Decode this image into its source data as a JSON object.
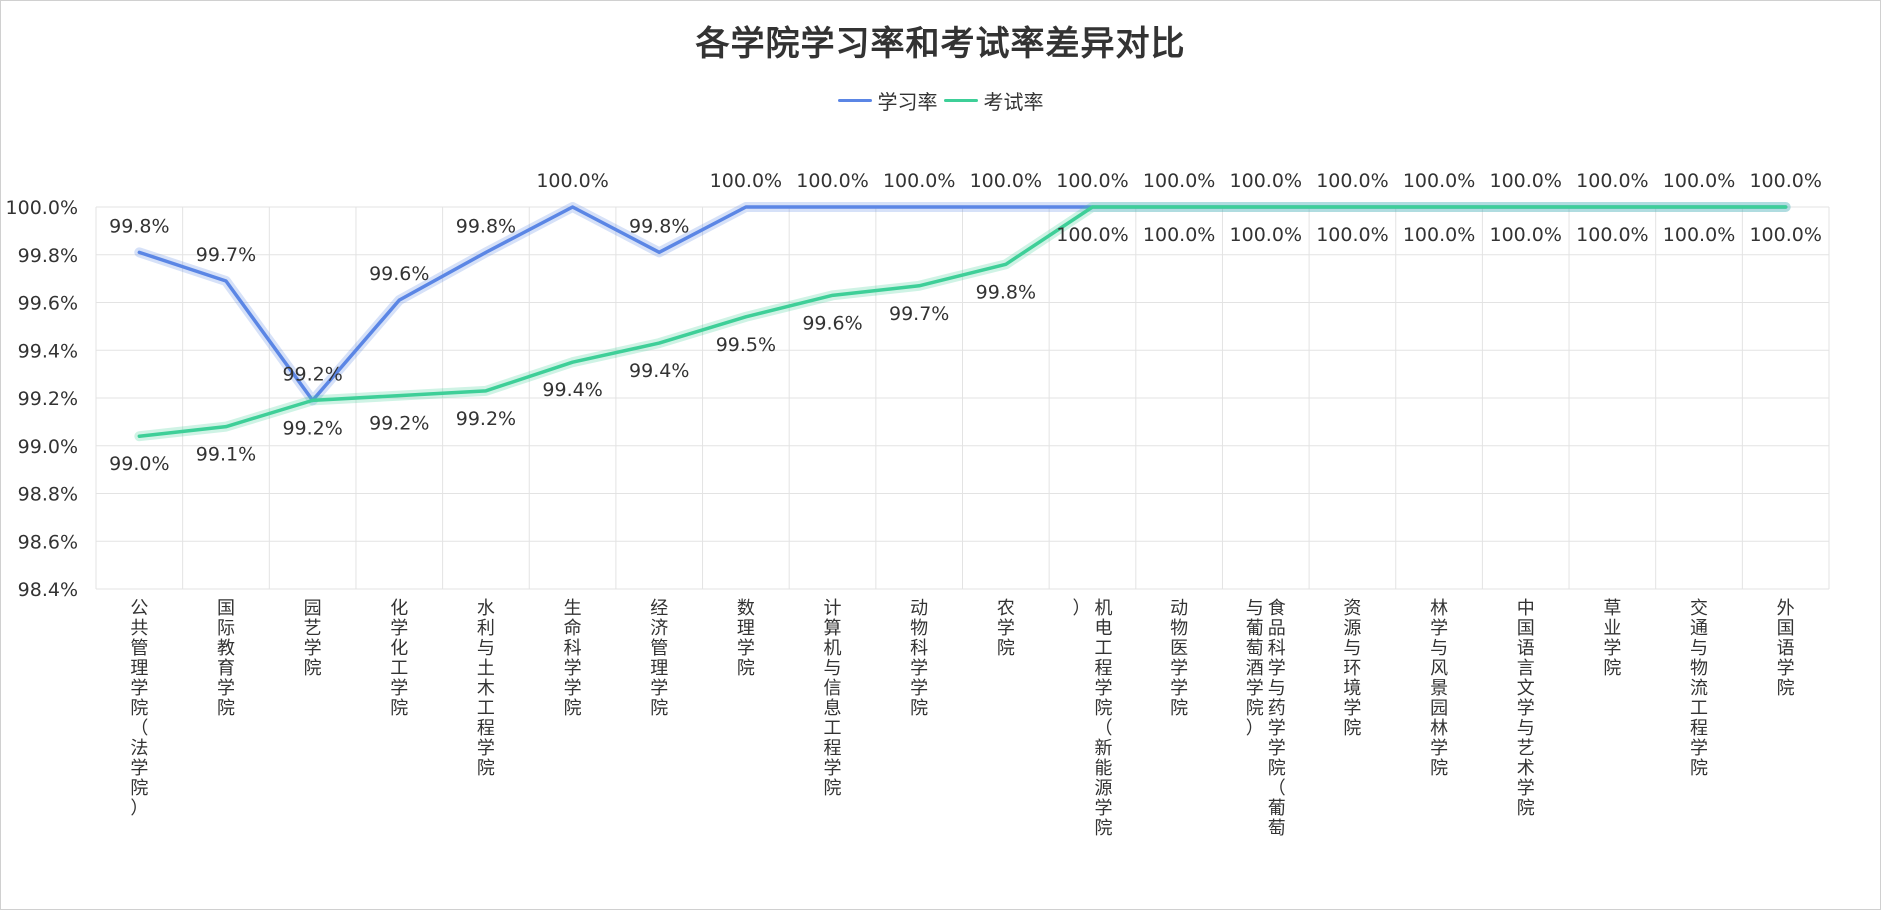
{
  "chart_data": {
    "type": "line",
    "title": "各学院学习率和考试率差异对比",
    "xlabel": "",
    "ylabel": "",
    "ylim": [
      98.4,
      100.0
    ],
    "yticks": [
      "100.0%",
      "99.8%",
      "99.6%",
      "99.4%",
      "99.2%",
      "99.0%",
      "98.8%",
      "98.6%",
      "98.4%"
    ],
    "grid": true,
    "legend_position": "top-center",
    "categories": [
      "公共管理学院（法学院）",
      "国际教育学院",
      "园艺学院",
      "化学化工学院",
      "水利与土木工程学院",
      "生命科学学院",
      "经济管理学院",
      "数理学院",
      "计算机与信息工程学院",
      "动物科学学院",
      "农学院",
      "机电工程学院（新能源学院）",
      "动物医学学院",
      "食品科学与药学学院（葡萄与葡萄酒学院）",
      "资源与环境学院",
      "林学与风景园林学院",
      "中国语言文学与艺术学院",
      "草业学院",
      "交通与物流工程学院",
      "外国语学院"
    ],
    "series": [
      {
        "name": "学习率",
        "color": "#5b86e5",
        "values": [
          99.81,
          99.69,
          99.19,
          99.61,
          99.81,
          100.0,
          99.81,
          100.0,
          100.0,
          100.0,
          100.0,
          100.0,
          100.0,
          100.0,
          100.0,
          100.0,
          100.0,
          100.0,
          100.0,
          100.0
        ],
        "labels": [
          "99.8%",
          "99.7%",
          "99.2%",
          "99.6%",
          "99.8%",
          "100.0%",
          "99.8%",
          "100.0%",
          "100.0%",
          "100.0%",
          "100.0%",
          "100.0%",
          "100.0%",
          "100.0%",
          "100.0%",
          "100.0%",
          "100.0%",
          "100.0%",
          "100.0%",
          "100.0%"
        ]
      },
      {
        "name": "考试率",
        "color": "#3ecf98",
        "values": [
          99.04,
          99.08,
          99.19,
          99.21,
          99.23,
          99.35,
          99.43,
          99.54,
          99.63,
          99.67,
          99.76,
          100.0,
          100.0,
          100.0,
          100.0,
          100.0,
          100.0,
          100.0,
          100.0,
          100.0
        ],
        "labels": [
          "99.0%",
          "99.1%",
          "99.2%",
          "99.2%",
          "99.2%",
          "99.4%",
          "99.4%",
          "99.5%",
          "99.6%",
          "99.7%",
          "99.8%",
          "100.0%",
          "100.0%",
          "100.0%",
          "100.0%",
          "100.0%",
          "100.0%",
          "100.0%",
          "100.0%",
          "100.0%"
        ]
      }
    ]
  }
}
